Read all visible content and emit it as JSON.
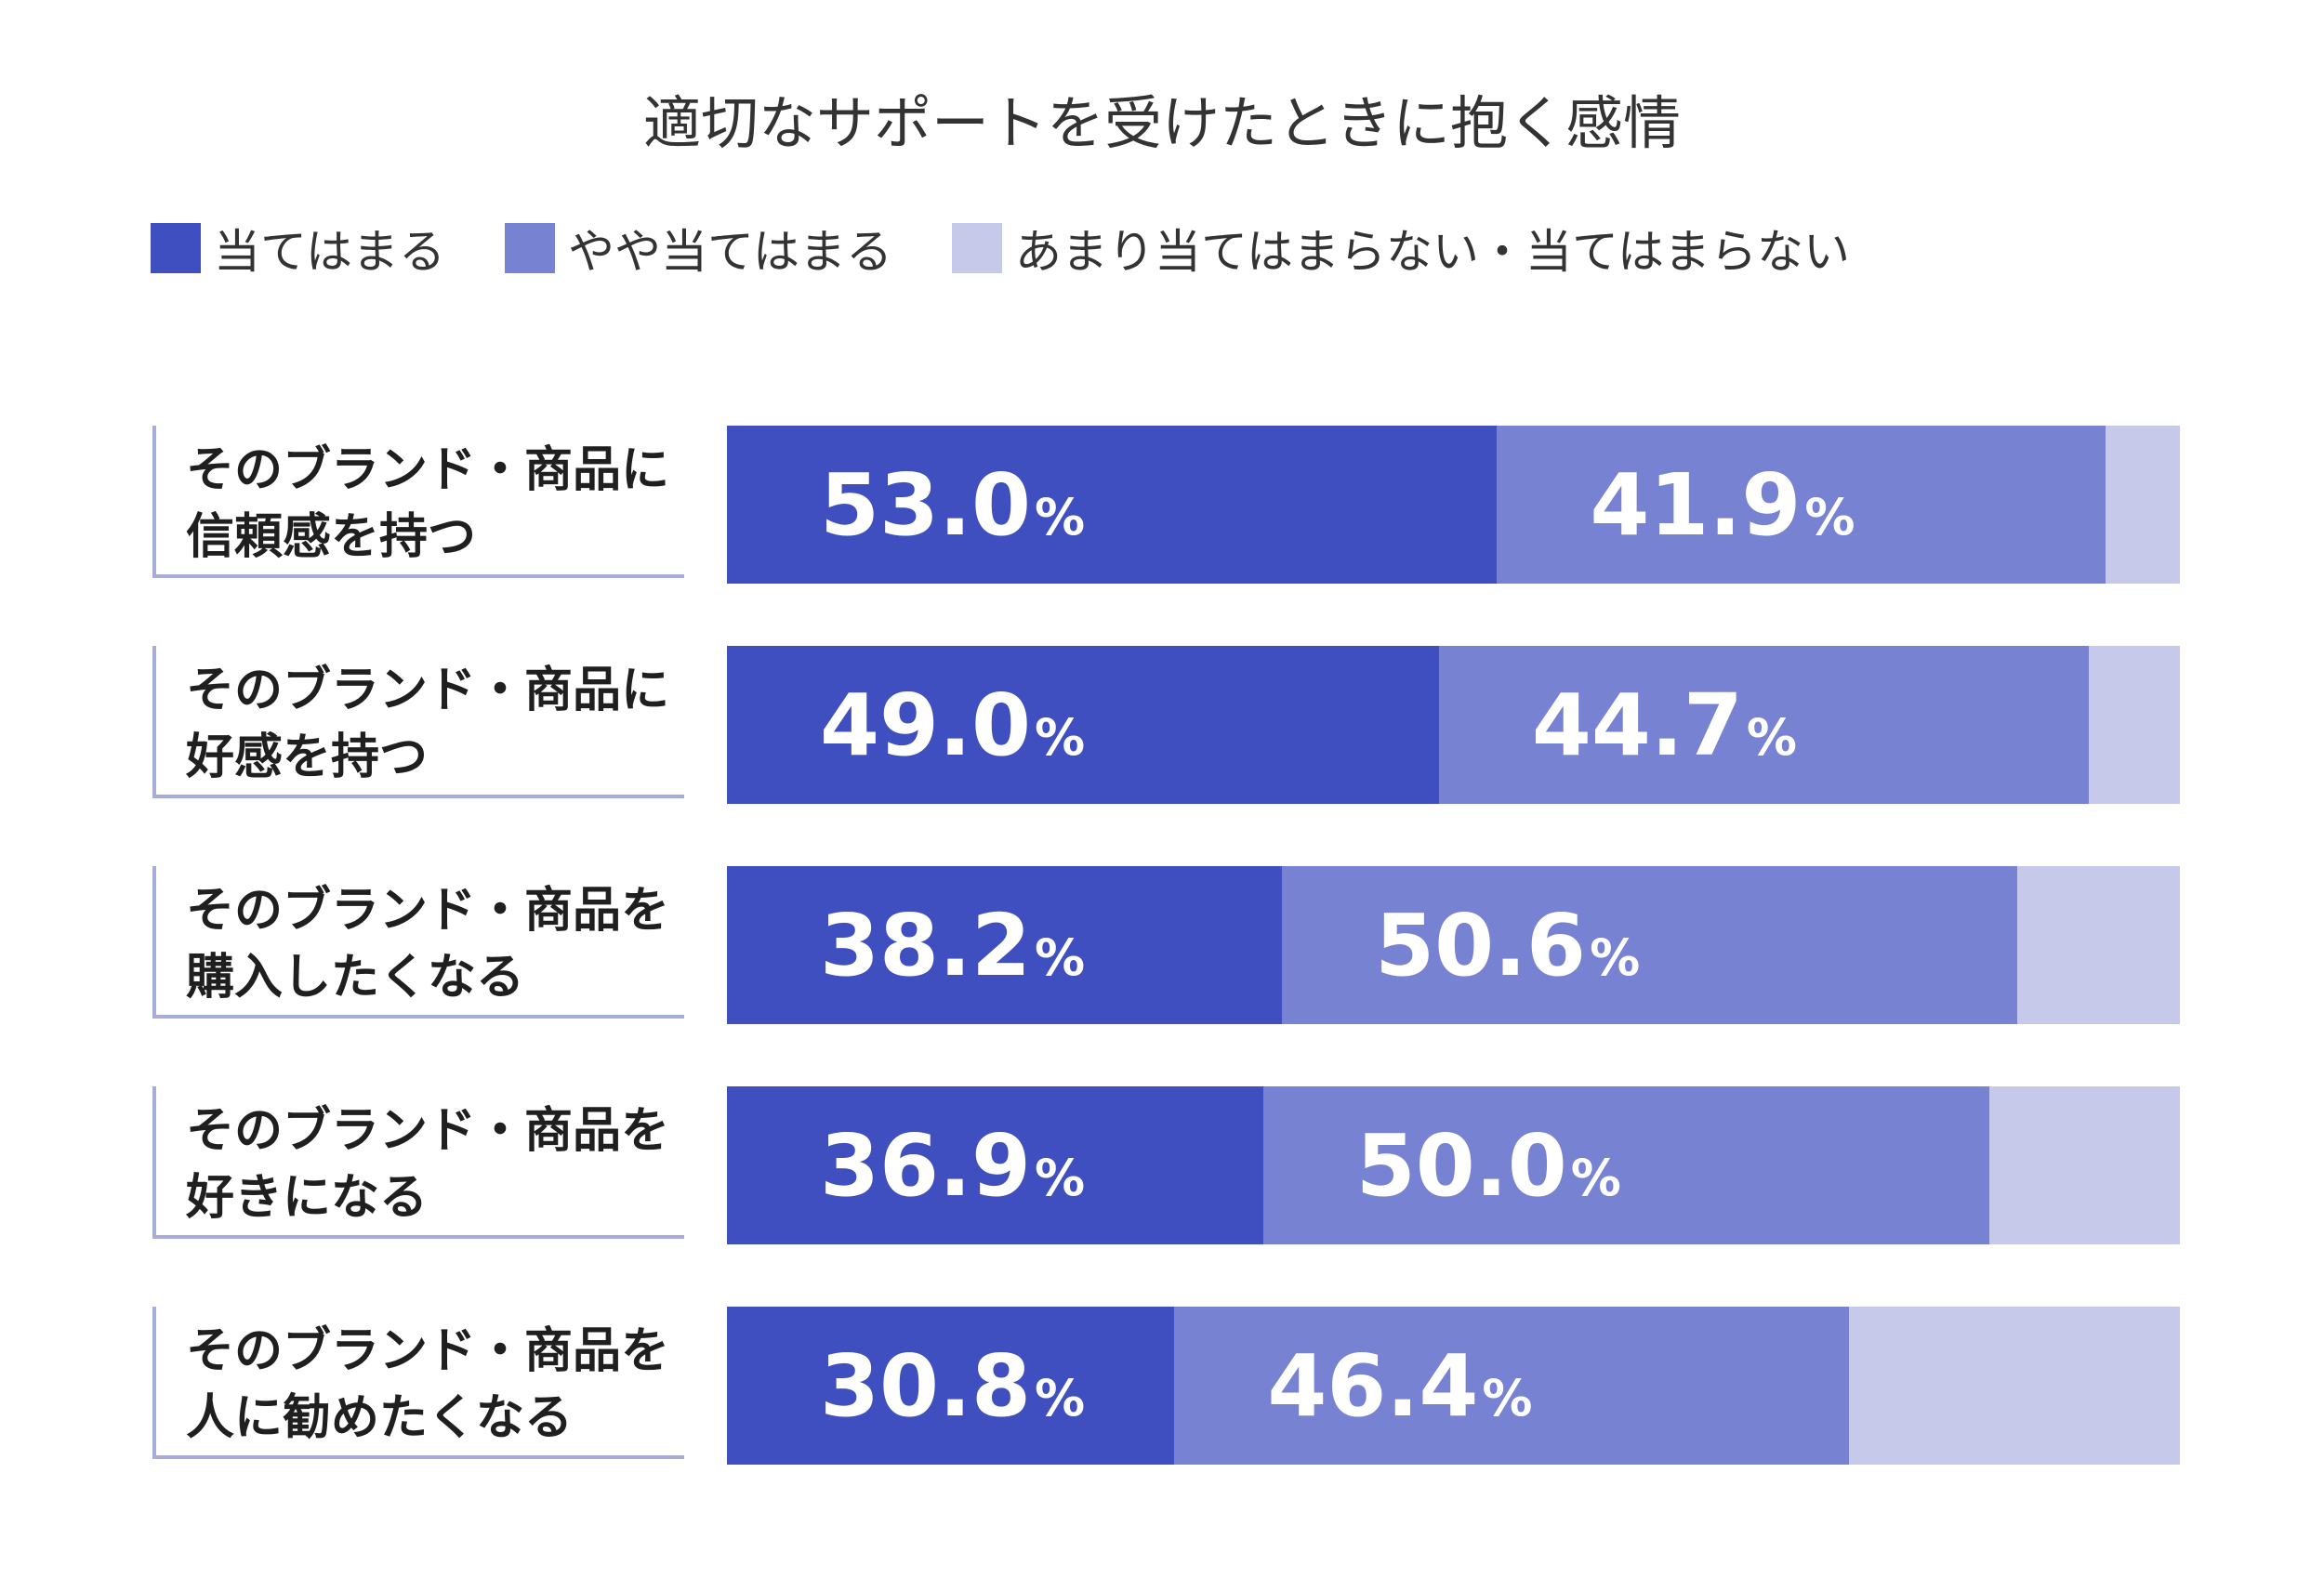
{
  "chart_data": {
    "type": "bar",
    "orientation": "horizontal",
    "stacked": true,
    "title": "適切なサポートを受けたときに抱く感情",
    "unit": "%",
    "legend_position": "top-left",
    "categories": [
      "そのブランド・商品に\n信頼感を持つ",
      "そのブランド・商品に\n好感を持つ",
      "そのブランド・商品を\n購入したくなる",
      "そのブランド・商品を\n好きになる",
      "そのブランド・商品を\n人に勧めたくなる"
    ],
    "series": [
      {
        "name": "当てはまる",
        "color": "#3f4fbf",
        "values": [
          53.0,
          49.0,
          38.2,
          36.9,
          30.8
        ],
        "labels": [
          "53.0",
          "49.0",
          "38.2",
          "36.9",
          "30.8"
        ]
      },
      {
        "name": "やや当てはまる",
        "color": "#7782d3",
        "values": [
          41.9,
          44.7,
          50.6,
          50.0,
          46.4
        ],
        "labels": [
          "41.9",
          "44.7",
          "50.6",
          "50.0",
          "46.4"
        ]
      },
      {
        "name": "あまり当てはまらない・当てはまらない",
        "color": "#c6c9ea",
        "values": [
          5.1,
          6.3,
          11.2,
          13.1,
          22.8
        ],
        "labels": [
          "",
          "",
          "",
          "",
          ""
        ]
      }
    ],
    "xlim": [
      0,
      100
    ],
    "grid": false
  }
}
